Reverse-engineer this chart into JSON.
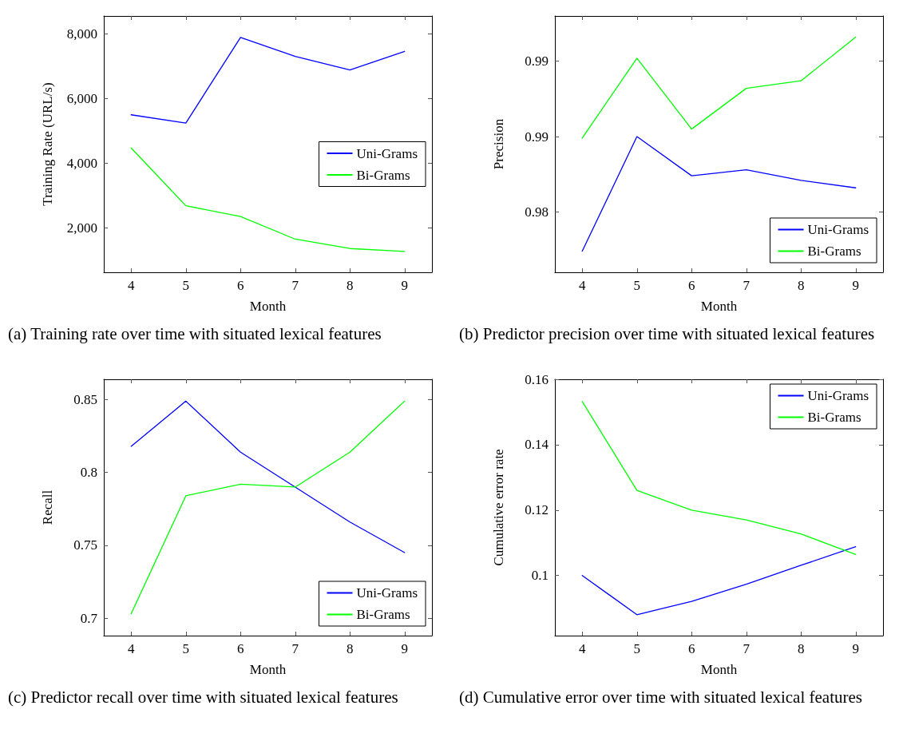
{
  "chart_data": [
    {
      "type": "line",
      "xlabel": "Month",
      "ylabel": "Training Rate (URL/s)",
      "x": [
        4,
        5,
        6,
        7,
        8,
        9
      ],
      "xlim": [
        3.5,
        9.5
      ],
      "xticks": [
        4,
        5,
        6,
        7,
        8,
        9
      ],
      "ylim": [
        625,
        8550
      ],
      "yticks": [
        {
          "value": 2000,
          "label": "2,000"
        },
        {
          "value": 4000,
          "label": "4,000"
        },
        {
          "value": 6000,
          "label": "6,000"
        },
        {
          "value": 8000,
          "label": "8,000"
        }
      ],
      "grid": false,
      "legend": "right",
      "marker": "none",
      "line_style": "solid",
      "series": [
        {
          "name": "Uni-Grams",
          "color": "#0000ff",
          "values": [
            5495,
            5240,
            7886,
            7300,
            6880,
            7457
          ]
        },
        {
          "name": "Bi-Grams",
          "color": "#00ff00",
          "values": [
            4470,
            2683,
            2350,
            1650,
            1360,
            1270
          ]
        }
      ],
      "annotations": [
        "(a) Training rate over time with situated lexical features"
      ]
    },
    {
      "type": "line",
      "xlabel": "Month",
      "ylabel": "Precision",
      "x": [
        4,
        5,
        6,
        7,
        8,
        9
      ],
      "xlim": [
        3.5,
        9.5
      ],
      "xticks": [
        4,
        5,
        6,
        7,
        8,
        9
      ],
      "ylim": [
        0.976,
        0.993
      ],
      "yticks": [
        0.98,
        {
          "value": 0.985,
          "label": "0.99"
        },
        0.99
      ],
      "grid": false,
      "legend": "bottom right",
      "marker": "none",
      "line_style": "solid",
      "series": [
        {
          "name": "Uni-Grams",
          "color": "#0000ff",
          "values": [
            0.9774,
            0.985,
            0.9824,
            0.9828,
            0.9821,
            0.9816
          ]
        },
        {
          "name": "Bi-Grams",
          "color": "#00ff00",
          "values": [
            0.9849,
            0.9902,
            0.9855,
            0.9882,
            0.9887,
            0.9916
          ]
        }
      ],
      "annotations": [
        "(b) Predictor precision over time with situated lexical features"
      ]
    },
    {
      "type": "line",
      "xlabel": "Month",
      "ylabel": "Recall",
      "x": [
        4,
        5,
        6,
        7,
        8,
        9
      ],
      "xlim": [
        3.5,
        9.5
      ],
      "xticks": [
        4,
        5,
        6,
        7,
        8,
        9
      ],
      "ylim": [
        0.688,
        0.864
      ],
      "yticks": [
        {
          "value": 0.7,
          "label": "0.7"
        },
        0.75,
        {
          "value": 0.8,
          "label": "0.8"
        },
        0.85
      ],
      "grid": false,
      "legend": "bottom right",
      "marker": "none",
      "line_style": "solid",
      "series": [
        {
          "name": "Uni-Grams",
          "color": "#0000ff",
          "values": [
            0.818,
            0.849,
            0.814,
            0.79,
            0.766,
            0.745
          ]
        },
        {
          "name": "Bi-Grams",
          "color": "#00ff00",
          "values": [
            0.703,
            0.784,
            0.792,
            0.79,
            0.814,
            0.849
          ]
        }
      ],
      "annotations": [
        "(c) Predictor recall over time with situated lexical features"
      ]
    },
    {
      "type": "line",
      "xlabel": "Month",
      "ylabel": "Cumulative error rate",
      "x": [
        4,
        5,
        6,
        7,
        8,
        9
      ],
      "xlim": [
        3.5,
        9.5
      ],
      "xticks": [
        4,
        5,
        6,
        7,
        8,
        9
      ],
      "ylim": [
        0.0816,
        0.16
      ],
      "yticks": [
        {
          "value": 0.1,
          "label": "0.1"
        },
        0.12,
        0.14,
        0.16
      ],
      "grid": false,
      "legend": "top right",
      "marker": "none",
      "line_style": "solid",
      "series": [
        {
          "name": "Uni-Grams",
          "color": "#0000ff",
          "values": [
            0.1,
            0.088,
            0.0921,
            0.0973,
            0.1031,
            0.1088
          ]
        },
        {
          "name": "Bi-Grams",
          "color": "#00ff00",
          "values": [
            0.1532,
            0.126,
            0.12,
            0.117,
            0.1127,
            0.1064
          ]
        }
      ],
      "annotations": [
        "(d) Cumulative error over time with situated lexical features"
      ]
    }
  ]
}
